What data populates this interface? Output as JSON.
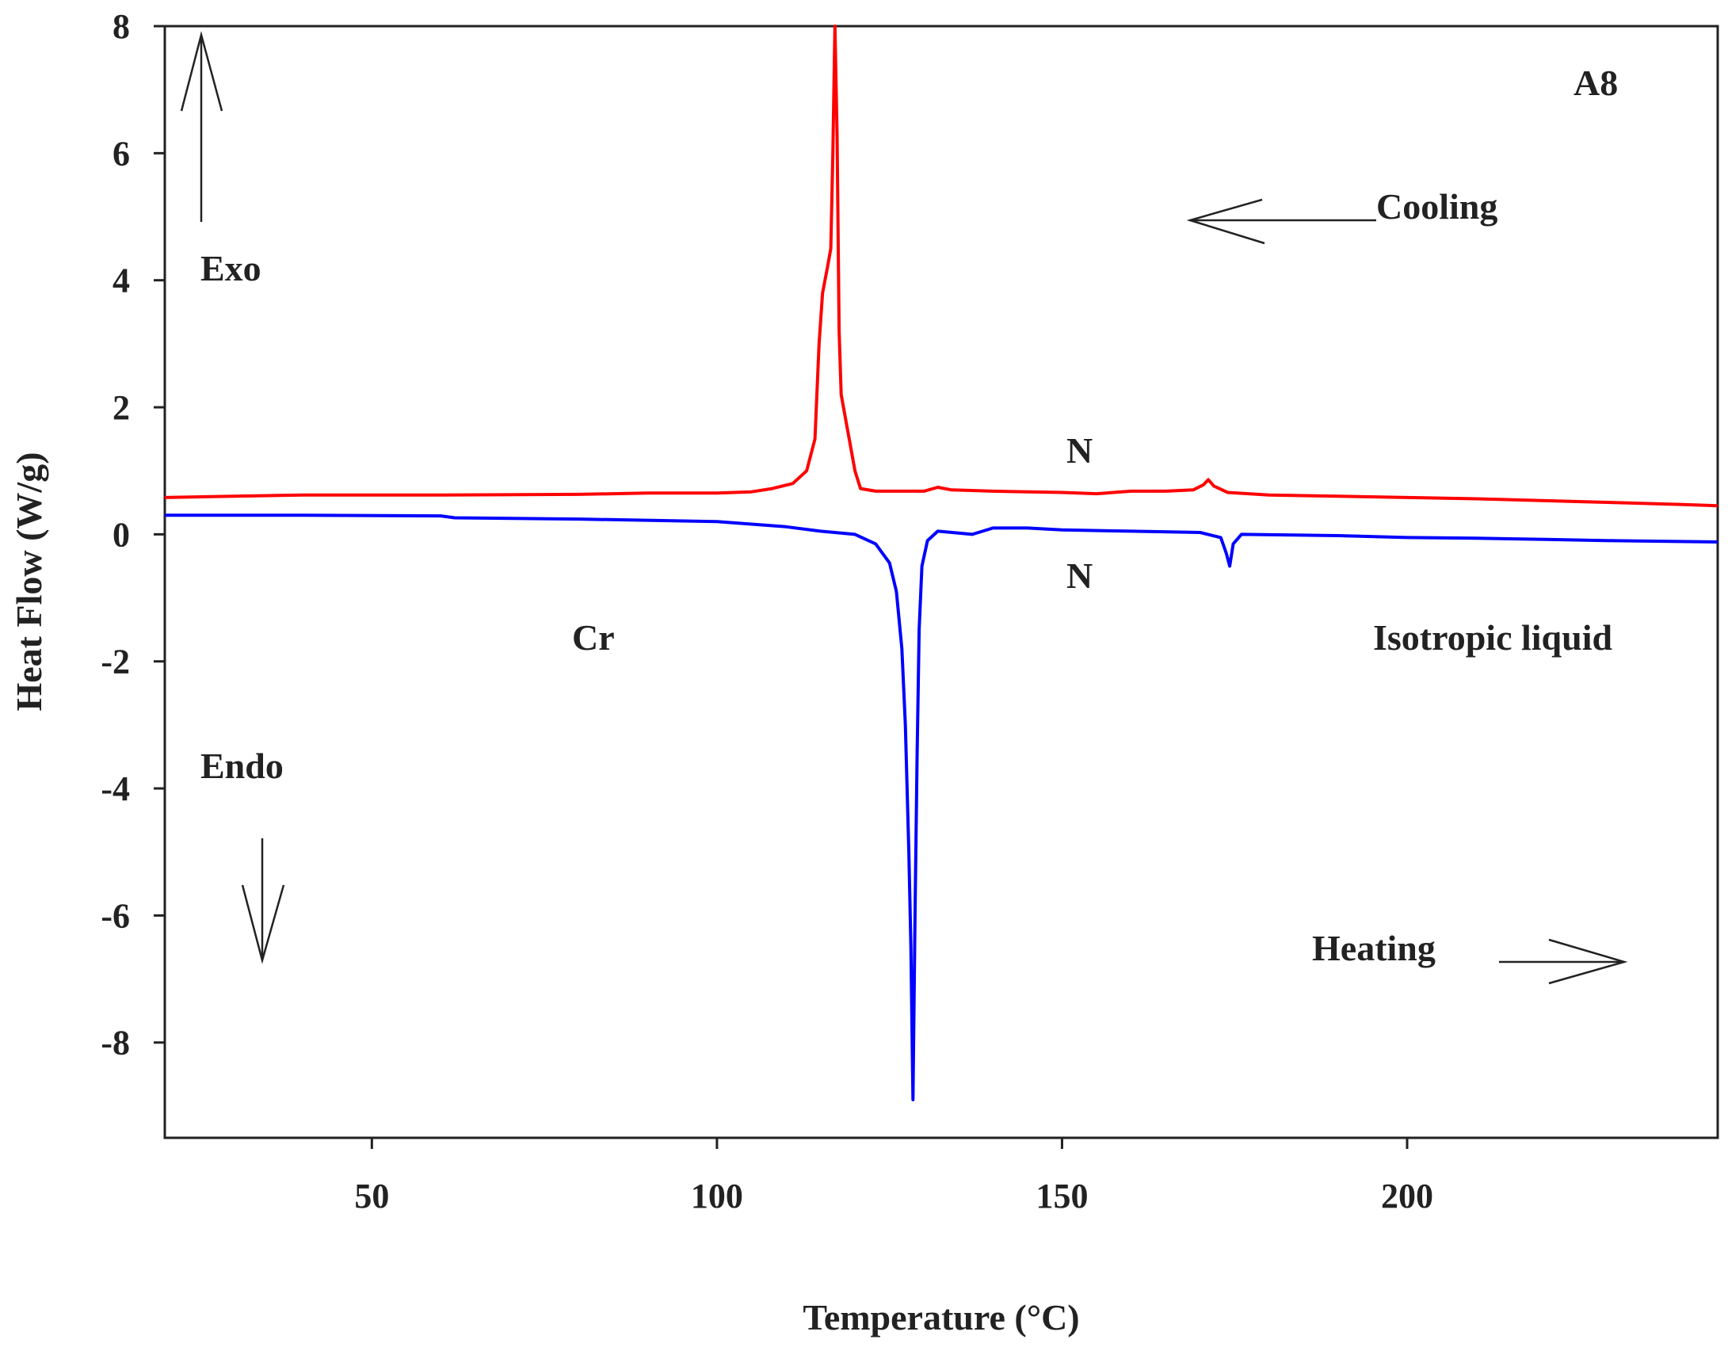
{
  "chart_data": {
    "type": "line",
    "xlabel": "Temperature (°C)",
    "ylabel": "Heat Flow (W/g)",
    "xlim": [
      20,
      245
    ],
    "ylim": [
      -9.5,
      8
    ],
    "x_ticks": [
      50,
      100,
      150,
      200
    ],
    "y_ticks": [
      8,
      6,
      4,
      2,
      0,
      -2,
      -4,
      -6,
      -8
    ],
    "grid": false,
    "series": [
      {
        "color": "#ff0000",
        "points": [
          [
            20,
            0.58
          ],
          [
            30,
            0.6
          ],
          [
            40,
            0.62
          ],
          [
            60,
            0.62
          ],
          [
            80,
            0.63
          ],
          [
            90,
            0.65
          ],
          [
            100,
            0.65
          ],
          [
            105,
            0.67
          ],
          [
            108,
            0.72
          ],
          [
            111,
            0.8
          ],
          [
            113,
            1.0
          ],
          [
            114.2,
            1.5
          ],
          [
            114.8,
            3.0
          ],
          [
            115.3,
            3.8
          ],
          [
            116,
            4.2
          ],
          [
            116.5,
            4.5
          ],
          [
            116.8,
            6.0
          ],
          [
            117.1,
            8.0
          ],
          [
            117.4,
            6.3
          ],
          [
            117.7,
            3.2
          ],
          [
            118,
            2.2
          ],
          [
            119,
            1.6
          ],
          [
            120,
            1.0
          ],
          [
            120.8,
            0.72
          ],
          [
            123,
            0.68
          ],
          [
            130,
            0.68
          ],
          [
            132,
            0.74
          ],
          [
            134,
            0.7
          ],
          [
            140,
            0.68
          ],
          [
            150,
            0.66
          ],
          [
            155,
            0.64
          ],
          [
            160,
            0.68
          ],
          [
            165,
            0.68
          ],
          [
            169,
            0.7
          ],
          [
            170.5,
            0.78
          ],
          [
            171.2,
            0.86
          ],
          [
            172,
            0.76
          ],
          [
            174,
            0.66
          ],
          [
            180,
            0.62
          ],
          [
            190,
            0.6
          ],
          [
            200,
            0.58
          ],
          [
            210,
            0.56
          ],
          [
            220,
            0.53
          ],
          [
            230,
            0.5
          ],
          [
            240,
            0.47
          ],
          [
            245,
            0.45
          ]
        ]
      },
      {
        "color": "#0000ff",
        "points": [
          [
            20,
            0.3
          ],
          [
            40,
            0.3
          ],
          [
            60,
            0.29
          ],
          [
            62,
            0.26
          ],
          [
            80,
            0.24
          ],
          [
            100,
            0.2
          ],
          [
            110,
            0.12
          ],
          [
            115,
            0.05
          ],
          [
            120,
            0.0
          ],
          [
            123,
            -0.15
          ],
          [
            125,
            -0.45
          ],
          [
            126,
            -0.9
          ],
          [
            126.8,
            -1.8
          ],
          [
            127.3,
            -3.0
          ],
          [
            127.8,
            -5.0
          ],
          [
            128.1,
            -6.5
          ],
          [
            128.4,
            -8.9
          ],
          [
            128.7,
            -6.0
          ],
          [
            129,
            -3.5
          ],
          [
            129.3,
            -1.5
          ],
          [
            129.7,
            -0.5
          ],
          [
            130.5,
            -0.1
          ],
          [
            132,
            0.05
          ],
          [
            135,
            0.02
          ],
          [
            137,
            0.0
          ],
          [
            140,
            0.1
          ],
          [
            145,
            0.1
          ],
          [
            150,
            0.07
          ],
          [
            160,
            0.05
          ],
          [
            170,
            0.03
          ],
          [
            173,
            -0.05
          ],
          [
            173.8,
            -0.3
          ],
          [
            174.3,
            -0.5
          ],
          [
            174.8,
            -0.15
          ],
          [
            176,
            0.0
          ],
          [
            190,
            -0.02
          ],
          [
            200,
            -0.05
          ],
          [
            210,
            -0.06
          ],
          [
            220,
            -0.08
          ],
          [
            230,
            -0.1
          ],
          [
            245,
            -0.12
          ]
        ]
      }
    ],
    "annotations": {
      "sample": "A8",
      "cooling": "Cooling",
      "heating": "Heating",
      "exo": "Exo",
      "endo": "Endo",
      "cr": "Cr",
      "n_top": "N",
      "n_bottom": "N",
      "isotropic": "Isotropic liquid"
    }
  }
}
